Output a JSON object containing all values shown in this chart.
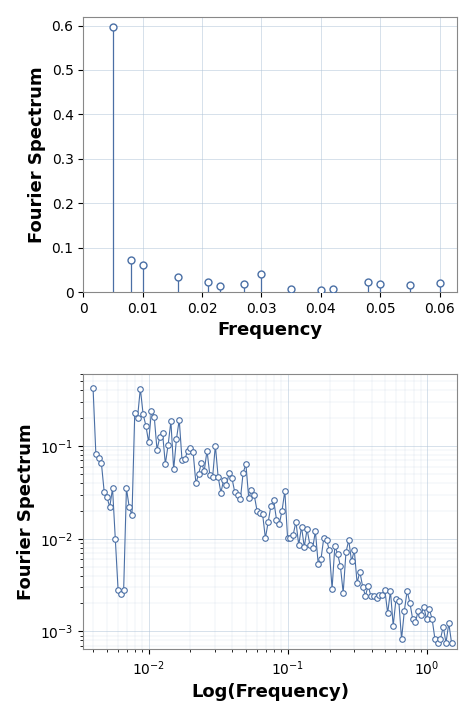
{
  "plot1": {
    "xlabel": "Frequency",
    "ylabel": "Fourier Spectrum",
    "xlim": [
      0,
      0.063
    ],
    "ylim": [
      0,
      0.62
    ],
    "xticks": [
      0,
      0.01,
      0.02,
      0.03,
      0.04,
      0.05,
      0.06
    ],
    "yticks": [
      0,
      0.1,
      0.2,
      0.3,
      0.4,
      0.5,
      0.6
    ],
    "freqs": [
      0.005,
      0.008,
      0.01,
      0.016,
      0.021,
      0.023,
      0.027,
      0.03,
      0.035,
      0.04,
      0.042,
      0.048,
      0.05,
      0.055,
      0.06
    ],
    "amps": [
      0.597,
      0.073,
      0.062,
      0.033,
      0.022,
      0.013,
      0.019,
      0.04,
      0.008,
      0.005,
      0.007,
      0.022,
      0.018,
      0.015,
      0.02
    ],
    "color": "#4a6fa5",
    "markersize": 5,
    "linewidth": 0.9
  },
  "plot2": {
    "xlabel": "Log(Frequency)",
    "ylabel": "Fourier Spectrum",
    "xmin": 0.004,
    "xmax": 1.5,
    "ymin": 0.00075,
    "ymax": 0.6,
    "color": "#4a6fa5",
    "markersize": 4,
    "linewidth": 0.8
  },
  "grid_color": "#b0c4d8",
  "grid_alpha": 0.6,
  "bg_color": "#ffffff",
  "label_fontsize": 13,
  "tick_fontsize": 10
}
